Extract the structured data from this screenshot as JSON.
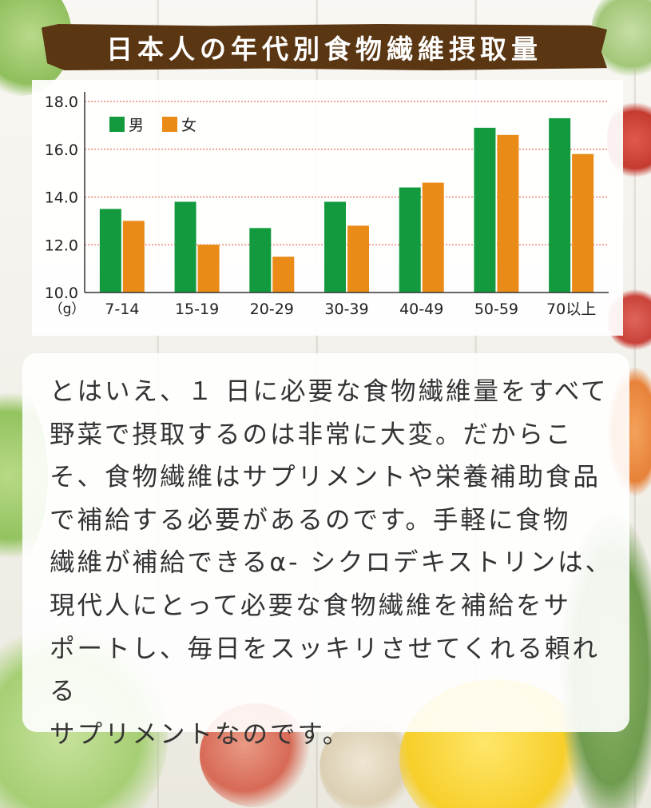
{
  "title": "日本人の年代別食物繊維摂取量",
  "chart_data": {
    "type": "bar",
    "categories": [
      "7-14",
      "15-19",
      "20-29",
      "30-39",
      "40-49",
      "50-59",
      "70以上"
    ],
    "series": [
      {
        "name": "男",
        "color": "#139a3e",
        "values": [
          13.5,
          13.8,
          12.7,
          13.8,
          14.4,
          16.9,
          17.3
        ]
      },
      {
        "name": "女",
        "color": "#ea8b17",
        "values": [
          13.0,
          12.0,
          11.5,
          12.8,
          14.6,
          16.6,
          15.8
        ]
      }
    ],
    "yticks": [
      "10.0",
      "12.0",
      "14.0",
      "16.0",
      "18.0"
    ],
    "ylim": [
      10,
      18
    ],
    "yunit": "（g）",
    "grid": true,
    "legend": "top-left"
  },
  "body_lines": [
    "とはいえ、１ 日に必要な食物繊維量をすべて",
    "野菜で摂取するのは非常に大変。だからこ",
    "そ、食物繊維はサプリメントや栄養補助食品",
    "で補給する必要があるのです。手軽に食物",
    "繊維が補給できるα- シクロデキストリンは、",
    "現代人にとって必要な食物繊維を補給をサ",
    "ポートし、毎日をスッキリさせてくれる頼れる",
    "サプリメントなのです。"
  ]
}
